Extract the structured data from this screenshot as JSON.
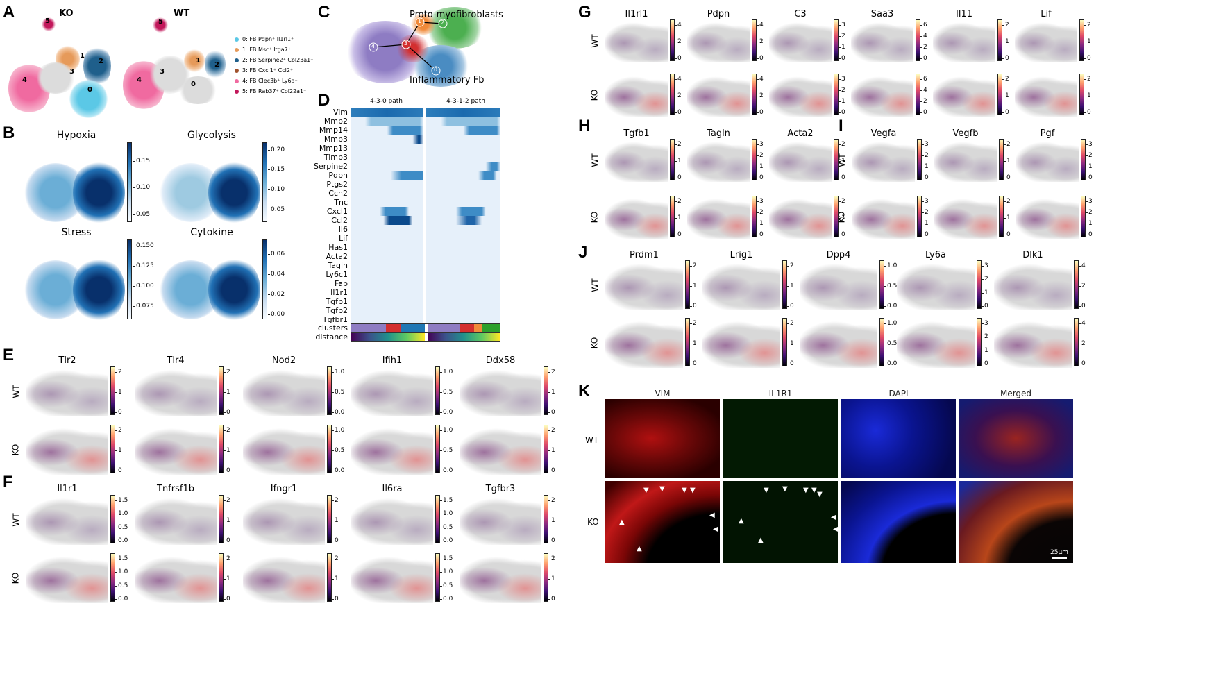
{
  "panel_letters": {
    "A": "A",
    "B": "B",
    "C": "C",
    "D": "D",
    "E": "E",
    "F": "F",
    "G": "G",
    "H": "H",
    "I": "I",
    "J": "J",
    "K": "K"
  },
  "panelA": {
    "titles": [
      "KO",
      "WT"
    ],
    "cluster_numbers": [
      "0",
      "1",
      "2",
      "3",
      "4",
      "5"
    ],
    "legend": [
      {
        "label": "0: FB Pdpn⁺ Il1rl1⁺",
        "color": "#5bc8e6"
      },
      {
        "label": "1: FB Msc⁺ Itga7⁺",
        "color": "#e69a5a"
      },
      {
        "label": "2: FB Serpine2⁺ Col23a1⁺",
        "color": "#1f5f8b"
      },
      {
        "label": "3: FB Cxcl1⁺ Ccl2⁺",
        "color": "#a0522d"
      },
      {
        "label": "4: FB Clec3b⁺ Ly6a⁺",
        "color": "#f06aa0"
      },
      {
        "label": "5: FB Rab37⁺ Col22a1⁺",
        "color": "#c2185b"
      }
    ]
  },
  "panelB": [
    {
      "title": "Hypoxia",
      "ticks": [
        "0.15",
        "0.10",
        "0.05"
      ]
    },
    {
      "title": "Glycolysis",
      "ticks": [
        "0.20",
        "0.15",
        "0.10",
        "0.05"
      ]
    },
    {
      "title": "Stress",
      "ticks": [
        "0.150",
        "0.125",
        "0.100",
        "0.075"
      ]
    },
    {
      "title": "Cytokine",
      "ticks": [
        "0.06",
        "0.04",
        "0.02",
        "0.00"
      ]
    }
  ],
  "panelC": {
    "label_top": "Proto-myofibroblasts",
    "label_bottom": "Inflammatory Fb",
    "nodes": [
      "0",
      "1",
      "2",
      "3",
      "4"
    ]
  },
  "panelD": {
    "paths": [
      "4-3-0 path",
      "4-3-1-2 path"
    ],
    "genes": [
      "Vim",
      "Mmp2",
      "Mmp14",
      "Mmp3",
      "Mmp13",
      "Timp3",
      "Serpine2",
      "Pdpn",
      "Ptgs2",
      "Ccn2",
      "Tnc",
      "Cxcl1",
      "Ccl2",
      "Il6",
      "Lif",
      "Has1",
      "Acta2",
      "Tagln",
      "Ly6c1",
      "Fap",
      "Il1r1",
      "Tgfb1",
      "Tgfb2",
      "Tgfbr1"
    ],
    "footer": [
      "clusters",
      "distance"
    ]
  },
  "panelE": {
    "genes": [
      "Tlr2",
      "Tlr4",
      "Nod2",
      "Ifih1",
      "Ddx58"
    ],
    "ticks": [
      [
        "2",
        "1",
        "0"
      ],
      [
        "2",
        "1",
        "0"
      ],
      [
        "1.0",
        "0.5",
        "0.0"
      ],
      [
        "1.0",
        "0.5",
        "0.0"
      ],
      [
        "2",
        "1",
        "0"
      ]
    ]
  },
  "panelF": {
    "genes": [
      "Il1r1",
      "Tnfrsf1b",
      "Ifngr1",
      "Il6ra",
      "Tgfbr3"
    ],
    "ticks": [
      [
        "1.5",
        "1.0",
        "0.5",
        "0.0"
      ],
      [
        "2",
        "1",
        "0"
      ],
      [
        "2",
        "1",
        "0"
      ],
      [
        "1.5",
        "1.0",
        "0.5",
        "0.0"
      ],
      [
        "2",
        "1",
        "0"
      ]
    ]
  },
  "panelG": {
    "genes": [
      "Il1rl1",
      "Pdpn",
      "C3",
      "Saa3",
      "Il11",
      "Lif"
    ],
    "ticks": [
      [
        "4",
        "2",
        "0"
      ],
      [
        "4",
        "2",
        "0"
      ],
      [
        "3",
        "2",
        "1",
        "0"
      ],
      [
        "6",
        "4",
        "2",
        "0"
      ],
      [
        "2",
        "1",
        "0"
      ],
      [
        "2",
        "1",
        "0"
      ]
    ]
  },
  "panelH": {
    "genes": [
      "Tgfb1",
      "Tagln",
      "Acta2"
    ],
    "ticks": [
      [
        "2",
        "1",
        "0"
      ],
      [
        "3",
        "2",
        "1",
        "0"
      ],
      [
        "2",
        "1",
        "0"
      ]
    ]
  },
  "panelI": {
    "genes": [
      "Vegfa",
      "Vegfb",
      "Pgf"
    ],
    "ticks": [
      [
        "3",
        "2",
        "1",
        "0"
      ],
      [
        "2",
        "1",
        "0"
      ],
      [
        "3",
        "2",
        "1",
        "0"
      ]
    ]
  },
  "panelJ": {
    "genes": [
      "Prdm1",
      "Lrig1",
      "Dpp4",
      "Ly6a",
      "Dlk1"
    ],
    "ticks": [
      [
        "2",
        "1",
        "0"
      ],
      [
        "2",
        "1",
        "0"
      ],
      [
        "1.0",
        "0.5",
        "0.0"
      ],
      [
        "3",
        "2",
        "1",
        "0"
      ],
      [
        "4",
        "2",
        "0"
      ]
    ]
  },
  "panelK": {
    "channels": [
      "VIM",
      "IL1R1",
      "DAPI",
      "Merged"
    ],
    "rows": [
      "WT",
      "KO"
    ],
    "scale": "25μm"
  },
  "conditions": {
    "wt": "WT",
    "ko": "KO"
  }
}
